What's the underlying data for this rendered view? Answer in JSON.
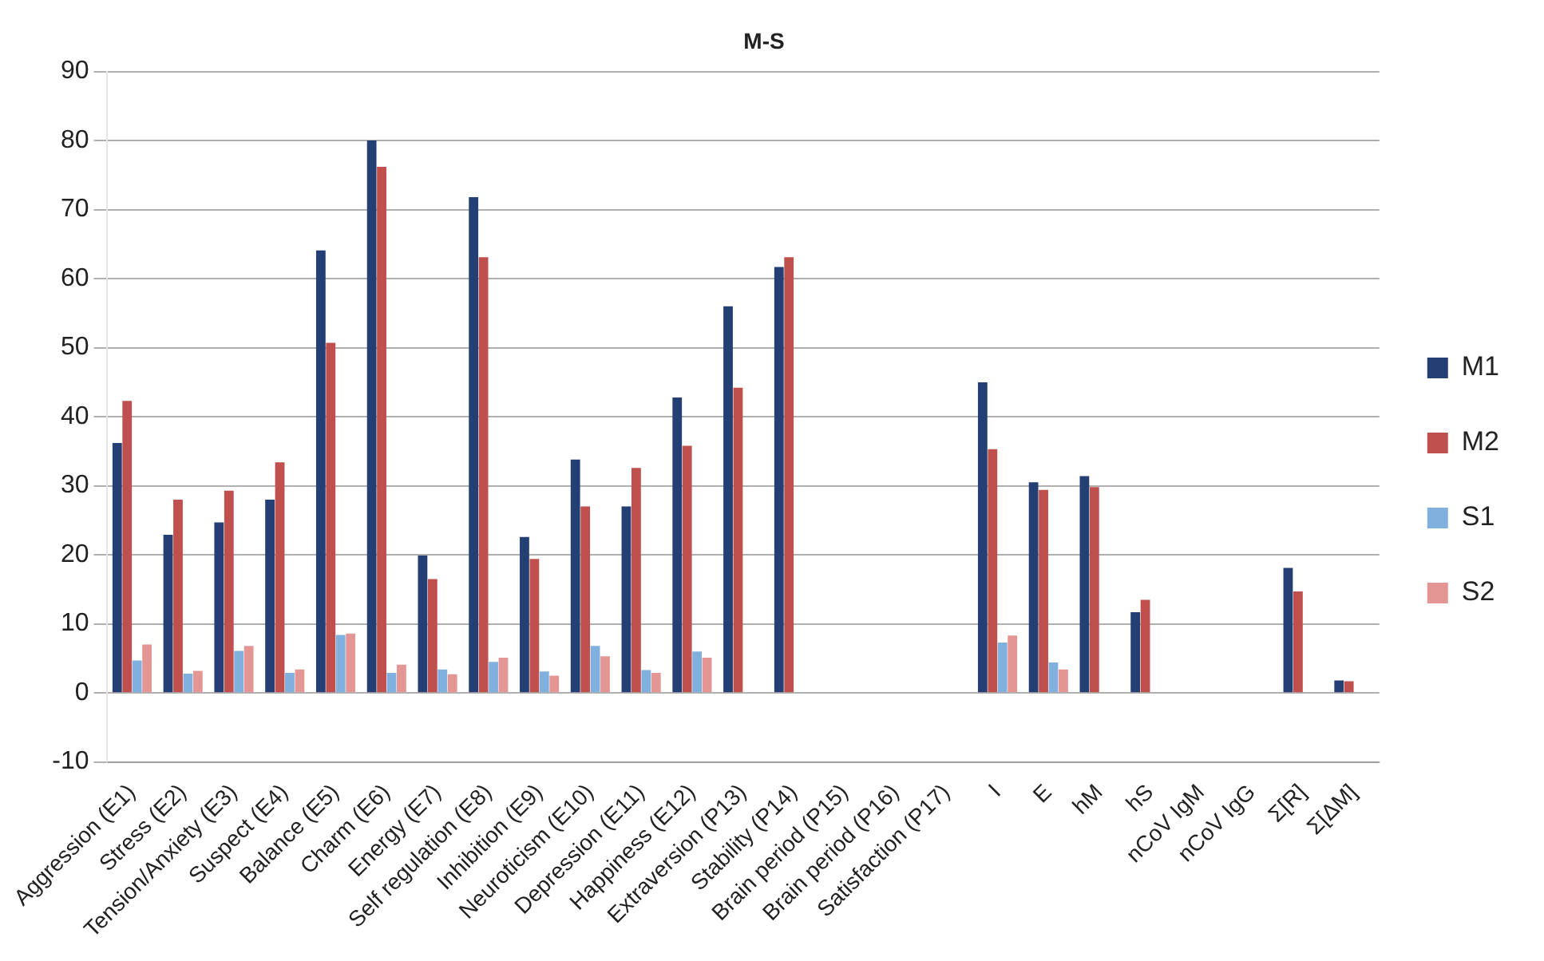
{
  "chart_data": {
    "type": "bar",
    "title": "M-S",
    "categories": [
      "Aggression (E1)",
      "Stress (E2)",
      "Tension/Anxiety (E3)",
      "Suspect (E4)",
      "Balance (E5)",
      "Charm (E6)",
      "Energy (E7)",
      "Self regulation (E8)",
      "Inhibition (E9)",
      "Neuroticism (E10)",
      "Depression (E11)",
      "Happiness (E12)",
      "Extraversion (P13)",
      "Stability (P14)",
      "Brain period (P15)",
      "Brain period (P16)",
      "Satisfaction (P17)",
      "I",
      "E",
      "hM",
      "hS",
      "nCoV IgM",
      "nCoV IgG",
      "Σ[R]",
      "Σ[ΔM]"
    ],
    "series": [
      {
        "name": "M1",
        "color": "#243f73",
        "values": [
          36.2,
          22.9,
          24.7,
          28.0,
          64.1,
          80,
          19.9,
          71.8,
          22.6,
          33.8,
          27.0,
          42.8,
          56.0,
          61.7,
          null,
          null,
          null,
          45.0,
          30.5,
          31.4,
          11.7,
          null,
          null,
          18.1,
          1.8
        ]
      },
      {
        "name": "M2",
        "color": "#c0504d",
        "values": [
          42.3,
          28.0,
          29.3,
          33.4,
          50.7,
          76.2,
          16.5,
          63.1,
          19.4,
          27.0,
          32.6,
          35.8,
          44.2,
          63.1,
          null,
          null,
          null,
          35.3,
          29.4,
          29.8,
          13.5,
          null,
          null,
          14.7,
          1.7
        ]
      },
      {
        "name": "S1",
        "color": "#7fb0de",
        "values": [
          4.7,
          2.8,
          6.1,
          2.9,
          8.4,
          2.9,
          3.4,
          4.5,
          3.1,
          6.8,
          3.3,
          6.0,
          null,
          null,
          null,
          null,
          null,
          7.3,
          4.4,
          null,
          null,
          null,
          null,
          null,
          null
        ]
      },
      {
        "name": "S2",
        "color": "#e39694",
        "values": [
          7.0,
          3.2,
          6.8,
          3.4,
          8.6,
          4.1,
          2.7,
          5.1,
          2.5,
          5.3,
          2.9,
          5.1,
          null,
          null,
          null,
          null,
          null,
          8.3,
          3.4,
          null,
          null,
          null,
          null,
          null,
          null
        ]
      }
    ],
    "ylim": [
      -10,
      90
    ],
    "yticks": [
      -10,
      0,
      10,
      20,
      30,
      40,
      50,
      60,
      70,
      80,
      90
    ],
    "grid": "y",
    "legend": "right"
  }
}
